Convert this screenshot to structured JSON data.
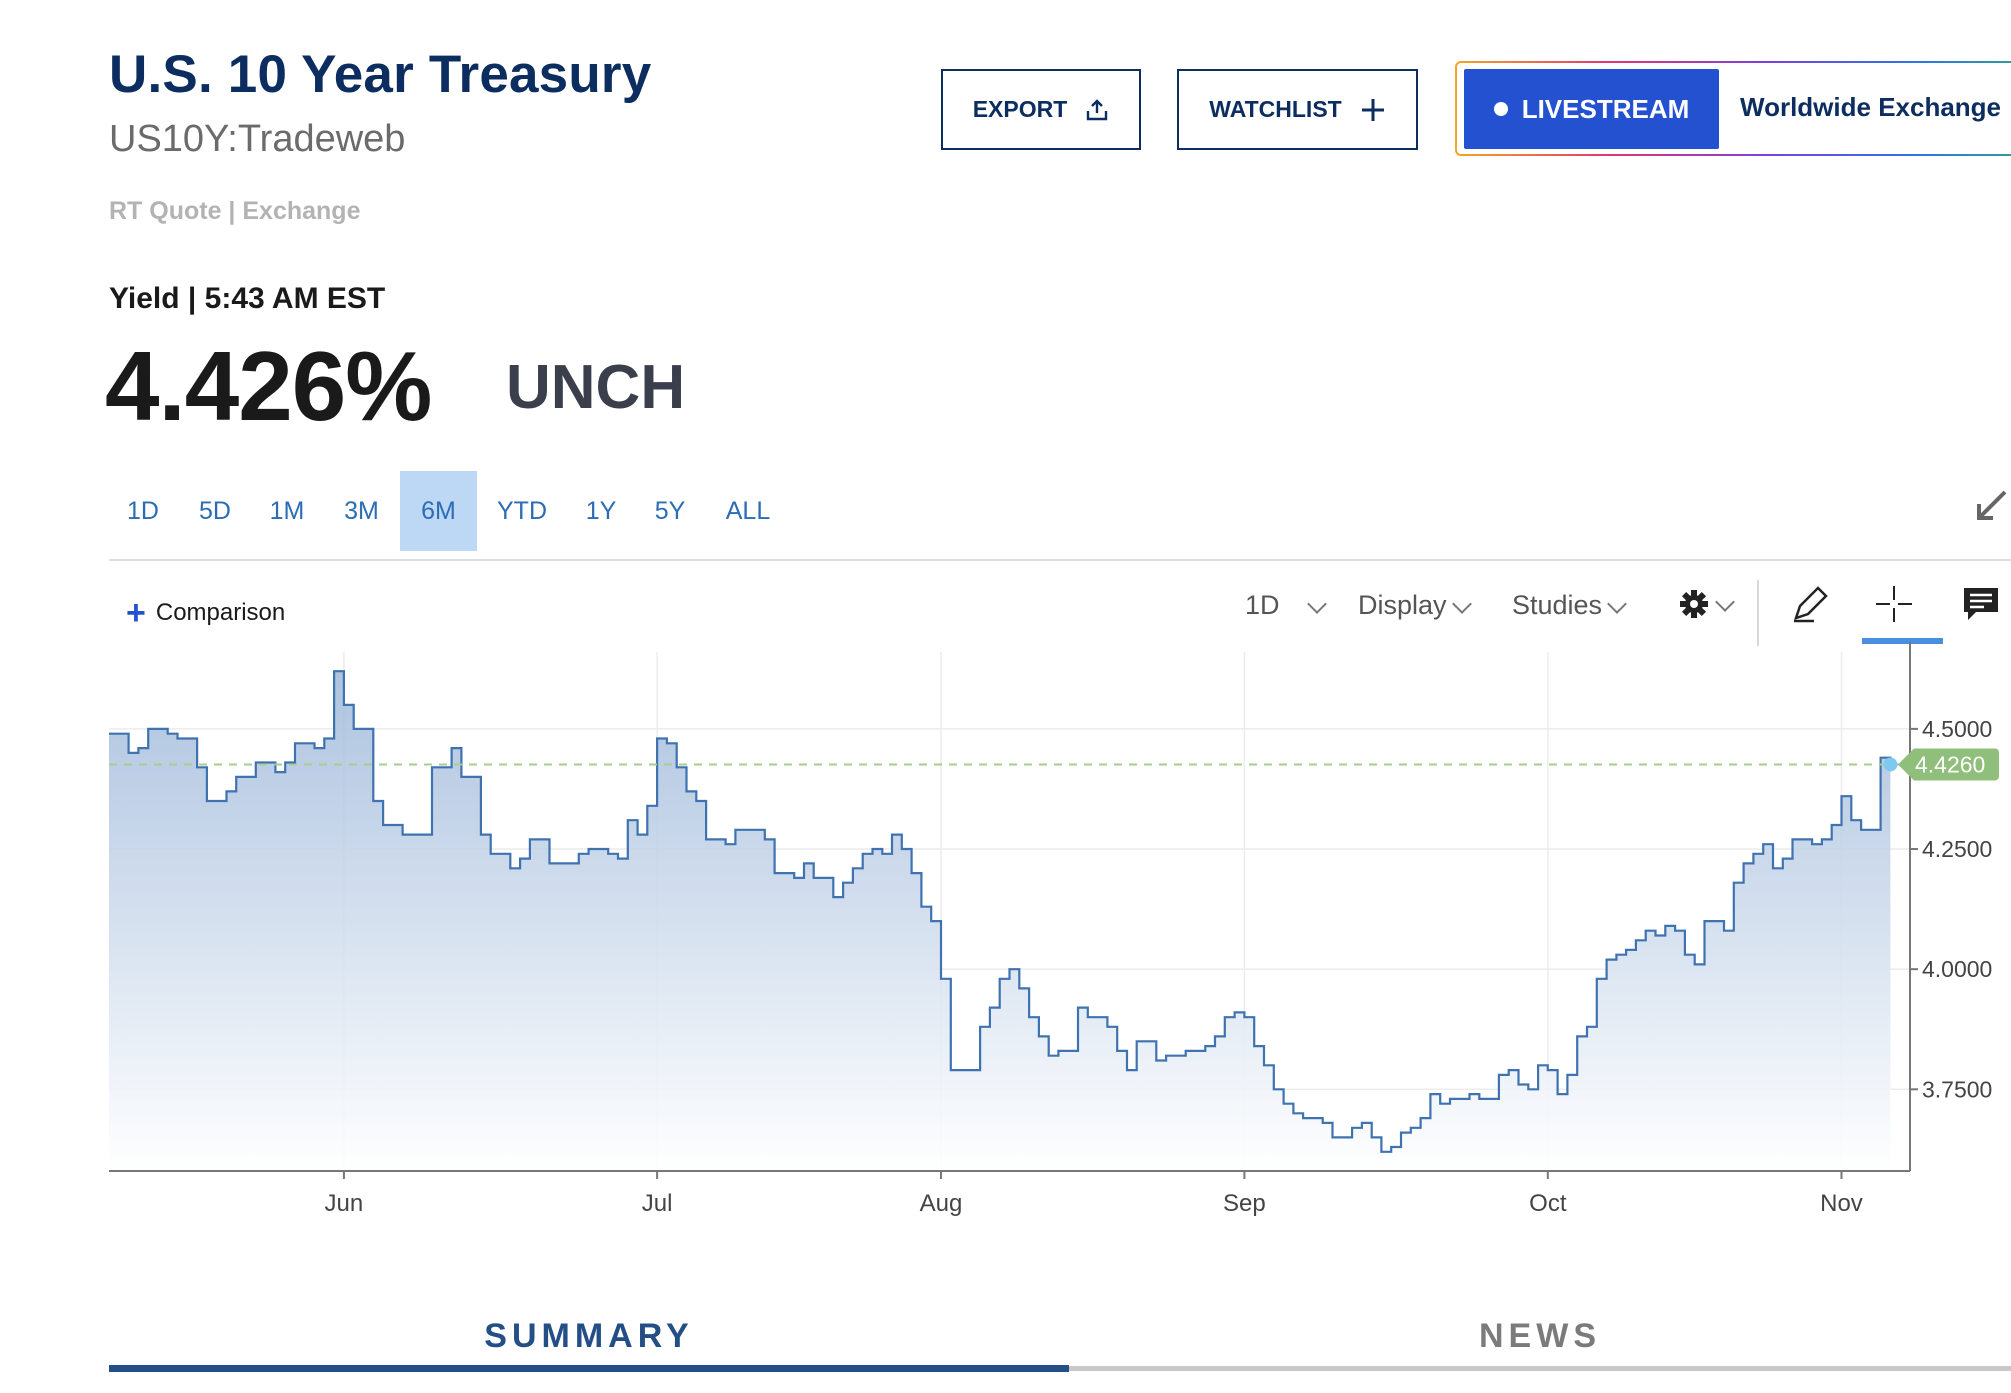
{
  "header": {
    "title": "U.S. 10 Year Treasury",
    "symbol": "US10Y:Tradeweb",
    "quote_type": "RT Quote | Exchange",
    "yield_label": "Yield | 5:43 AM EST",
    "price": "4.426%",
    "change": "UNCH"
  },
  "actions": {
    "export_label": "EXPORT",
    "watchlist_label": "WATCHLIST",
    "livestream_label": "LIVESTREAM",
    "live_channel": "Worldwide Exchange"
  },
  "ranges": [
    "1D",
    "5D",
    "1M",
    "3M",
    "6M",
    "YTD",
    "1Y",
    "5Y",
    "ALL"
  ],
  "selected_range": "6M",
  "chart_toolbar": {
    "comparison_label": "Comparison",
    "interval_label": "1D",
    "display_label": "Display",
    "studies_label": "Studies"
  },
  "tabs": {
    "summary": "SUMMARY",
    "news": "NEWS"
  },
  "colors": {
    "brand": "#0c2d60",
    "line": "#3f72b0",
    "current_marker": "#8fbf7a",
    "selected_range_bg": "#bcd8f5",
    "livestream": "#2351d0"
  },
  "chart_data": {
    "type": "area",
    "title": "",
    "xlabel": "",
    "ylabel": "",
    "y_ticks": [
      "4.5000",
      "4.2500",
      "4.0000",
      "3.7500"
    ],
    "y_tick_values": [
      4.5,
      4.25,
      4.0,
      3.75
    ],
    "ylim": [
      3.58,
      4.66
    ],
    "x_ticks": [
      {
        "label": "Jun",
        "date": "2023-06-01"
      },
      {
        "label": "Jul",
        "date": "2023-07-03"
      },
      {
        "label": "Aug",
        "date": "2023-08-01"
      },
      {
        "label": "Sep",
        "date": "2023-09-01"
      },
      {
        "label": "Oct",
        "date": "2023-10-02"
      },
      {
        "label": "Nov",
        "date": "2023-11-01"
      }
    ],
    "xlim": [
      "2023-05-08",
      "2023-11-08"
    ],
    "current_value": 4.426,
    "current_label": "4.4260",
    "grid": true,
    "series": [
      {
        "values": [
          [
            "2023-05-08",
            4.49
          ],
          [
            "2023-05-09",
            4.49
          ],
          [
            "2023-05-10",
            4.45
          ],
          [
            "2023-05-11",
            4.46
          ],
          [
            "2023-05-12",
            4.5
          ],
          [
            "2023-05-14",
            4.49
          ],
          [
            "2023-05-15",
            4.48
          ],
          [
            "2023-05-17",
            4.42
          ],
          [
            "2023-05-18",
            4.35
          ],
          [
            "2023-05-20",
            4.37
          ],
          [
            "2023-05-21",
            4.4
          ],
          [
            "2023-05-23",
            4.43
          ],
          [
            "2023-05-24",
            4.43
          ],
          [
            "2023-05-25",
            4.41
          ],
          [
            "2023-05-26",
            4.43
          ],
          [
            "2023-05-27",
            4.47
          ],
          [
            "2023-05-29",
            4.46
          ],
          [
            "2023-05-30",
            4.48
          ],
          [
            "2023-05-31",
            4.62
          ],
          [
            "2023-06-01",
            4.55
          ],
          [
            "2023-06-02",
            4.5
          ],
          [
            "2023-06-04",
            4.35
          ],
          [
            "2023-06-05",
            4.3
          ],
          [
            "2023-06-07",
            4.28
          ],
          [
            "2023-06-09",
            4.28
          ],
          [
            "2023-06-10",
            4.42
          ],
          [
            "2023-06-12",
            4.46
          ],
          [
            "2023-06-13",
            4.4
          ],
          [
            "2023-06-15",
            4.28
          ],
          [
            "2023-06-16",
            4.24
          ],
          [
            "2023-06-18",
            4.21
          ],
          [
            "2023-06-19",
            4.23
          ],
          [
            "2023-06-20",
            4.27
          ],
          [
            "2023-06-22",
            4.22
          ],
          [
            "2023-06-24",
            4.22
          ],
          [
            "2023-06-25",
            4.24
          ],
          [
            "2023-06-26",
            4.25
          ],
          [
            "2023-06-28",
            4.24
          ],
          [
            "2023-06-29",
            4.23
          ],
          [
            "2023-06-30",
            4.31
          ],
          [
            "2023-07-01",
            4.28
          ],
          [
            "2023-07-02",
            4.34
          ],
          [
            "2023-07-03",
            4.48
          ],
          [
            "2023-07-04",
            4.47
          ],
          [
            "2023-07-05",
            4.42
          ],
          [
            "2023-07-06",
            4.37
          ],
          [
            "2023-07-07",
            4.35
          ],
          [
            "2023-07-08",
            4.27
          ],
          [
            "2023-07-10",
            4.26
          ],
          [
            "2023-07-11",
            4.29
          ],
          [
            "2023-07-12",
            4.29
          ],
          [
            "2023-07-14",
            4.27
          ],
          [
            "2023-07-15",
            4.2
          ],
          [
            "2023-07-17",
            4.19
          ],
          [
            "2023-07-18",
            4.22
          ],
          [
            "2023-07-19",
            4.19
          ],
          [
            "2023-07-21",
            4.15
          ],
          [
            "2023-07-22",
            4.18
          ],
          [
            "2023-07-23",
            4.21
          ],
          [
            "2023-07-24",
            4.24
          ],
          [
            "2023-07-25",
            4.25
          ],
          [
            "2023-07-26",
            4.24
          ],
          [
            "2023-07-27",
            4.28
          ],
          [
            "2023-07-28",
            4.25
          ],
          [
            "2023-07-29",
            4.2
          ],
          [
            "2023-07-30",
            4.13
          ],
          [
            "2023-07-31",
            4.1
          ],
          [
            "2023-08-01",
            3.98
          ],
          [
            "2023-08-02",
            3.79
          ],
          [
            "2023-08-04",
            3.79
          ],
          [
            "2023-08-05",
            3.88
          ],
          [
            "2023-08-06",
            3.92
          ],
          [
            "2023-08-07",
            3.98
          ],
          [
            "2023-08-08",
            4.0
          ],
          [
            "2023-08-09",
            3.96
          ],
          [
            "2023-08-10",
            3.9
          ],
          [
            "2023-08-11",
            3.86
          ],
          [
            "2023-08-12",
            3.82
          ],
          [
            "2023-08-13",
            3.83
          ],
          [
            "2023-08-15",
            3.92
          ],
          [
            "2023-08-16",
            3.9
          ],
          [
            "2023-08-18",
            3.88
          ],
          [
            "2023-08-19",
            3.83
          ],
          [
            "2023-08-20",
            3.79
          ],
          [
            "2023-08-21",
            3.85
          ],
          [
            "2023-08-22",
            3.85
          ],
          [
            "2023-08-23",
            3.81
          ],
          [
            "2023-08-24",
            3.82
          ],
          [
            "2023-08-26",
            3.83
          ],
          [
            "2023-08-28",
            3.84
          ],
          [
            "2023-08-29",
            3.86
          ],
          [
            "2023-08-30",
            3.9
          ],
          [
            "2023-08-31",
            3.91
          ],
          [
            "2023-09-01",
            3.9
          ],
          [
            "2023-09-02",
            3.84
          ],
          [
            "2023-09-03",
            3.8
          ],
          [
            "2023-09-04",
            3.75
          ],
          [
            "2023-09-05",
            3.72
          ],
          [
            "2023-09-06",
            3.7
          ],
          [
            "2023-09-07",
            3.69
          ],
          [
            "2023-09-09",
            3.68
          ],
          [
            "2023-09-10",
            3.65
          ],
          [
            "2023-09-11",
            3.65
          ],
          [
            "2023-09-12",
            3.67
          ],
          [
            "2023-09-13",
            3.68
          ],
          [
            "2023-09-14",
            3.65
          ],
          [
            "2023-09-15",
            3.62
          ],
          [
            "2023-09-16",
            3.63
          ],
          [
            "2023-09-17",
            3.66
          ],
          [
            "2023-09-18",
            3.67
          ],
          [
            "2023-09-19",
            3.69
          ],
          [
            "2023-09-20",
            3.74
          ],
          [
            "2023-09-21",
            3.72
          ],
          [
            "2023-09-22",
            3.73
          ],
          [
            "2023-09-24",
            3.74
          ],
          [
            "2023-09-25",
            3.73
          ],
          [
            "2023-09-27",
            3.78
          ],
          [
            "2023-09-28",
            3.79
          ],
          [
            "2023-09-29",
            3.76
          ],
          [
            "2023-09-30",
            3.75
          ],
          [
            "2023-10-01",
            3.8
          ],
          [
            "2023-10-02",
            3.79
          ],
          [
            "2023-10-03",
            3.74
          ],
          [
            "2023-10-04",
            3.78
          ],
          [
            "2023-10-05",
            3.86
          ],
          [
            "2023-10-06",
            3.88
          ],
          [
            "2023-10-07",
            3.98
          ],
          [
            "2023-10-08",
            4.02
          ],
          [
            "2023-10-09",
            4.03
          ],
          [
            "2023-10-10",
            4.04
          ],
          [
            "2023-10-11",
            4.06
          ],
          [
            "2023-10-12",
            4.08
          ],
          [
            "2023-10-13",
            4.07
          ],
          [
            "2023-10-14",
            4.09
          ],
          [
            "2023-10-15",
            4.08
          ],
          [
            "2023-10-16",
            4.03
          ],
          [
            "2023-10-17",
            4.01
          ],
          [
            "2023-10-18",
            4.1
          ],
          [
            "2023-10-20",
            4.08
          ],
          [
            "2023-10-21",
            4.18
          ],
          [
            "2023-10-22",
            4.22
          ],
          [
            "2023-10-23",
            4.24
          ],
          [
            "2023-10-24",
            4.26
          ],
          [
            "2023-10-25",
            4.21
          ],
          [
            "2023-10-26",
            4.23
          ],
          [
            "2023-10-27",
            4.27
          ],
          [
            "2023-10-29",
            4.26
          ],
          [
            "2023-10-30",
            4.27
          ],
          [
            "2023-10-31",
            4.3
          ],
          [
            "2023-11-01",
            4.36
          ],
          [
            "2023-11-02",
            4.31
          ],
          [
            "2023-11-03",
            4.29
          ],
          [
            "2023-11-04",
            4.29
          ],
          [
            "2023-11-05",
            4.44
          ],
          [
            "2023-11-06",
            4.426
          ]
        ]
      }
    ]
  }
}
